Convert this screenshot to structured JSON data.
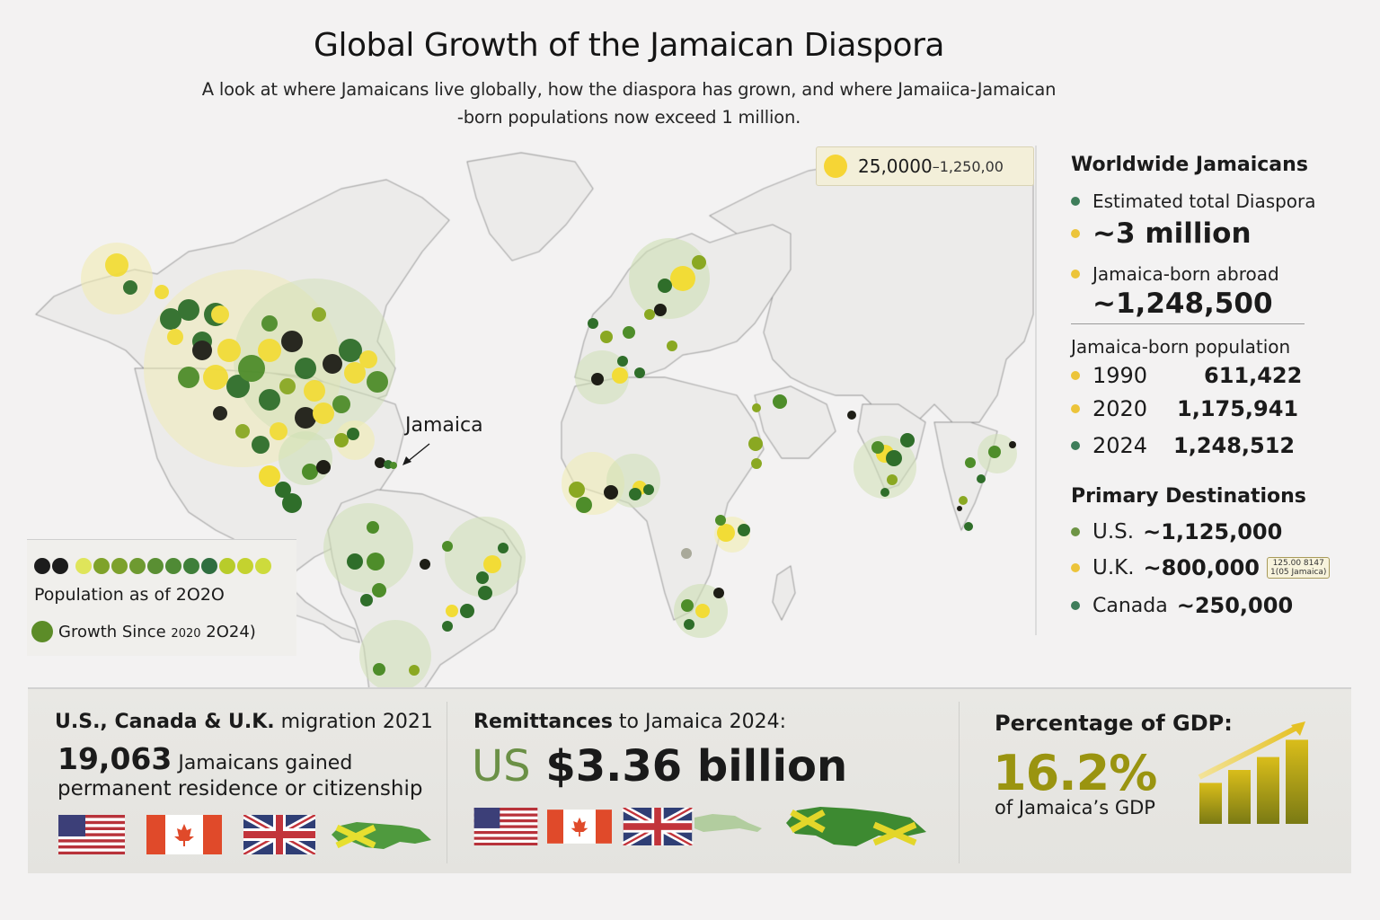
{
  "header": {
    "title": "Global Growth of the Jamaican Diaspora",
    "subtitle_line1": "A look at where Jamaicans live globally, how the diaspora has grown, and where Jamaiica-Jamaican",
    "subtitle_line2": "-born populations now exceed 1 million."
  },
  "map": {
    "range_legend": {
      "main": "25,0000",
      "rest": "–1,250,00",
      "dot_color": "#f6d535"
    },
    "annotation": "Jamaica",
    "scale_legend": {
      "dot_colors": [
        "#1c1c1c",
        "#1c1c1c",
        "#dfe55a",
        "#7fa22a",
        "#7da12c",
        "#6e9a30",
        "#5a8f33",
        "#4f8a35",
        "#3f7f3a",
        "#2f6e40",
        "#b8cc2a",
        "#c4d22f",
        "#cddb3c"
      ],
      "label": "Population as of 2O2O",
      "growth_label": "Growth Since",
      "growth_small": "2020",
      "growth_end": "2O24)"
    },
    "bubble_colors": {
      "dark": "#1e1e16",
      "deep_green": "#2f6e2a",
      "green": "#4e8d2a",
      "olive": "#8aa822",
      "yellow": "#f2dc36",
      "pale_green": "#cfe0b4",
      "pale_yellow": "#f1ecb0"
    }
  },
  "sidebar": {
    "worldwide": {
      "title": "Worldwide Jamaicans",
      "items": [
        {
          "label": "Estimated total Diaspora",
          "dot": "#3e7d5a"
        },
        {
          "label": "~3 million",
          "dot": "#ecc43a"
        },
        {
          "label": "Jamaica-born abroad",
          "dot": "#ecc43a"
        }
      ],
      "born_abroad_value": "~1,248,500"
    },
    "population": {
      "title": "Jamaica-born population",
      "rows": [
        {
          "year": "1990",
          "value": "611,422",
          "dot": "#ecc43a"
        },
        {
          "year": "2020",
          "value": "1,175,941",
          "dot": "#ecc43a"
        },
        {
          "year": "2024",
          "value": "1,248,512",
          "dot": "#3e7d5a"
        }
      ]
    },
    "destinations": {
      "title": "Primary Destinations",
      "rows": [
        {
          "country": "U.S.",
          "value": "~1,125,000",
          "dot": "#6d9445"
        },
        {
          "country": "U.K.",
          "value": "~800,000",
          "dot": "#ecc43a",
          "tag_line1": "125.00 8147",
          "tag_line2": "1(05 Jamaica)"
        },
        {
          "country": "Canada",
          "value": "~250,000",
          "dot": "#3e7d5a"
        }
      ]
    }
  },
  "bottom": {
    "migration": {
      "head_bold": "U.S., Canada & U.K.",
      "head_rest": " migration 2021",
      "number": "19,063",
      "line1_rest": " Jamaicans gained",
      "line2": "permanent residence or citizenship",
      "flags": [
        "us-flag",
        "canada-flag",
        "uk-flag",
        "jamaica-map"
      ]
    },
    "remittances": {
      "head_bold": "Remittances",
      "head_rest": " to Jamaica 2024:",
      "currency": "US",
      "amount": " $3.36 billion",
      "flags": [
        "us-flag",
        "canada-flag",
        "uk-flag",
        "cuba-map",
        "jamaica-map"
      ]
    },
    "gdp": {
      "head": "Percentage of GDP:",
      "percent": "16.2%",
      "sub": "of Jamaica’s GDP",
      "bars": [
        0.38,
        0.5,
        0.62,
        0.78
      ],
      "accent": "#c9b312"
    }
  }
}
